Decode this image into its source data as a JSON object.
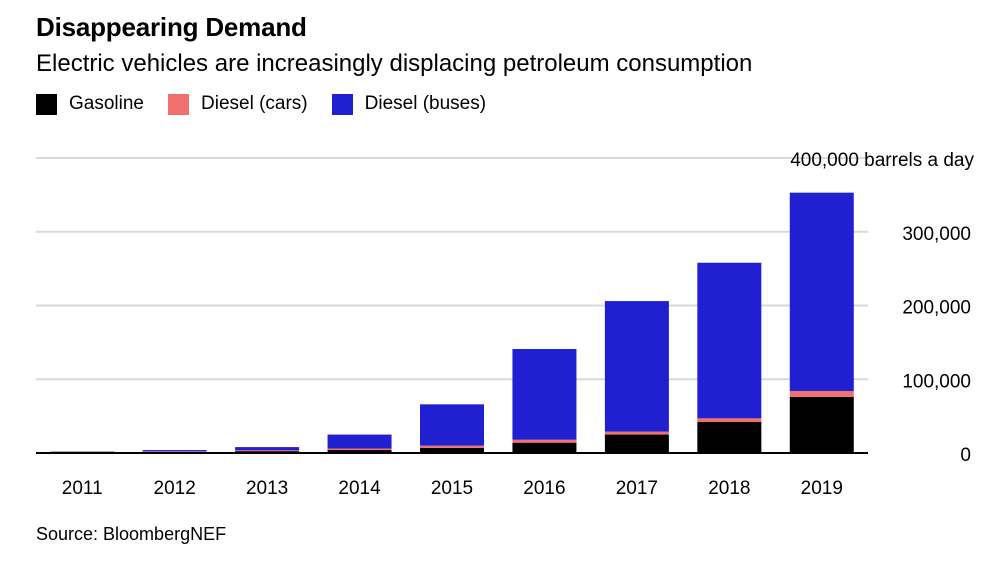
{
  "chart_data": {
    "type": "bar",
    "stacked": true,
    "title": "Disappearing Demand",
    "subtitle": "Electric vehicles are increasingly displacing petroleum consumption",
    "categories": [
      "2011",
      "2012",
      "2013",
      "2014",
      "2015",
      "2016",
      "2017",
      "2018",
      "2019"
    ],
    "series": [
      {
        "name": "Gasoline",
        "color": "#000000",
        "values": [
          1000,
          1500,
          2500,
          4000,
          7000,
          14000,
          25000,
          42000,
          76000
        ]
      },
      {
        "name": "Diesel (cars)",
        "color": "#f07070",
        "values": [
          500,
          800,
          1200,
          2000,
          3000,
          4000,
          4000,
          5000,
          8000
        ]
      },
      {
        "name": "Diesel (buses)",
        "color": "#2020d0",
        "values": [
          500,
          1700,
          4300,
          19000,
          56000,
          123000,
          177000,
          211000,
          269000
        ]
      }
    ],
    "yticks": [
      0,
      100000,
      200000,
      300000,
      400000
    ],
    "ytick_labels": [
      "0",
      "100,000",
      "200,000",
      "300,000",
      "400,000 barrels a day"
    ],
    "ylim": [
      0,
      400000
    ],
    "grid": true,
    "legend_position": "top-left",
    "source": "Source: BloombergNEF"
  }
}
